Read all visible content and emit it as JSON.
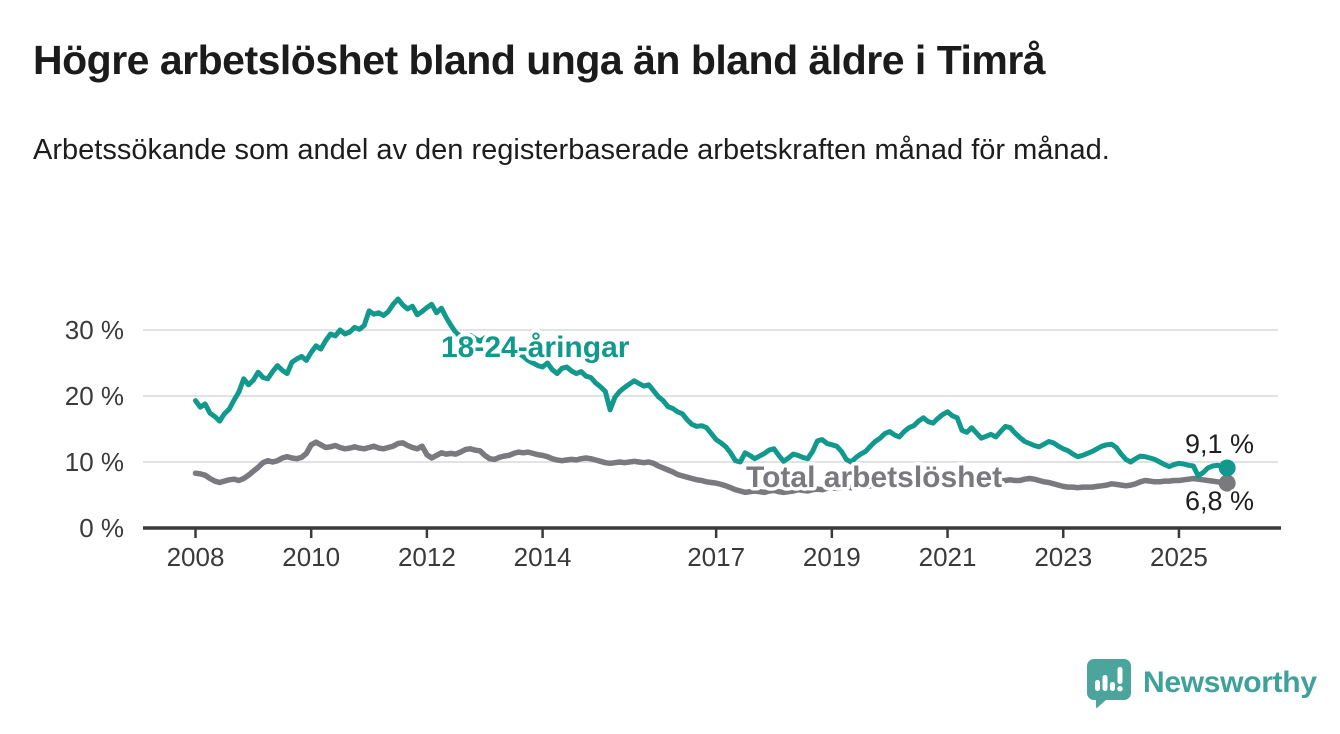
{
  "header": {
    "title": "Högre arbetslöshet bland unga än bland äldre i Timrå",
    "subtitle": "Arbetssökande som andel av den registerbaserade arbetskraften månad för månad."
  },
  "chart_data": {
    "type": "line",
    "title": "Högre arbetslöshet bland unga än bland äldre i Timrå",
    "subtitle": "Arbetssökande som andel av den registerbaserade arbetskraften månad för månad.",
    "unit": "%",
    "grid": "horizontal-only",
    "legend_position": "inline-labels-on-lines",
    "x_tick_years": [
      2008,
      2010,
      2012,
      2014,
      2017,
      2019,
      2021,
      2023,
      2025
    ],
    "x_tick_labels": [
      "2008",
      "2010",
      "2012",
      "2014",
      "2017",
      "2019",
      "2021",
      "2023",
      "2025"
    ],
    "y_ticks": [
      0,
      10,
      20,
      30
    ],
    "y_tick_labels": [
      "0 %",
      "10 %",
      "20 %",
      "30 %"
    ],
    "xlim": [
      2007.1,
      2026.8
    ],
    "ylim": [
      0,
      36
    ],
    "series": [
      {
        "name": "18-24-åringar",
        "color": "#12998d",
        "start_year": 2008,
        "points_per_year": 12,
        "end_label": "9,1 %",
        "end_value": 9.1,
        "values": [
          19.3,
          18.3,
          18.8,
          17.4,
          16.9,
          16.2,
          17.3,
          18.0,
          19.4,
          20.6,
          22.6,
          21.7,
          22.4,
          23.6,
          22.8,
          22.6,
          23.7,
          24.6,
          23.9,
          23.4,
          25.1,
          25.6,
          26.0,
          25.4,
          26.6,
          27.6,
          27.1,
          28.4,
          29.4,
          29.1,
          30.0,
          29.4,
          29.7,
          30.4,
          30.1,
          30.7,
          32.9,
          32.4,
          32.6,
          32.2,
          32.8,
          33.9,
          34.7,
          33.8,
          33.2,
          33.6,
          32.3,
          32.8,
          33.4,
          33.9,
          32.6,
          33.3,
          31.9,
          30.7,
          29.6,
          29.0,
          28.5,
          29.2,
          28.7,
          28.3,
          28.8,
          28.2,
          27.6,
          28.0,
          27.2,
          26.8,
          27.3,
          26.5,
          26.0,
          25.4,
          25.0,
          24.6,
          24.4,
          25.0,
          24.0,
          23.4,
          24.2,
          24.4,
          23.8,
          23.4,
          23.7,
          23.0,
          22.8,
          22.0,
          21.4,
          20.7,
          17.9,
          19.8,
          20.7,
          21.3,
          21.8,
          22.3,
          21.9,
          21.5,
          21.7,
          20.8,
          19.9,
          19.3,
          18.4,
          18.1,
          17.6,
          17.3,
          16.4,
          15.7,
          15.4,
          15.5,
          15.2,
          14.3,
          13.4,
          12.9,
          12.3,
          11.4,
          10.2,
          10.0,
          11.4,
          11.0,
          10.5,
          10.9,
          11.3,
          11.8,
          12.0,
          11.0,
          10.1,
          10.6,
          11.2,
          11.0,
          10.7,
          10.5,
          11.6,
          13.2,
          13.4,
          12.8,
          12.6,
          12.4,
          11.6,
          10.4,
          10.0,
          10.7,
          11.2,
          11.6,
          12.4,
          13.1,
          13.6,
          14.3,
          14.6,
          14.1,
          13.8,
          14.6,
          15.2,
          15.5,
          16.2,
          16.7,
          16.1,
          15.9,
          16.6,
          17.2,
          17.6,
          17.0,
          16.7,
          14.8,
          14.5,
          15.2,
          14.4,
          13.6,
          13.9,
          14.2,
          13.8,
          14.6,
          15.4,
          15.2,
          14.4,
          13.7,
          13.1,
          12.8,
          12.5,
          12.3,
          12.7,
          13.1,
          12.9,
          12.4,
          12.0,
          11.7,
          11.2,
          10.8,
          11.0,
          11.3,
          11.6,
          12.0,
          12.4,
          12.6,
          12.7,
          12.2,
          11.2,
          10.4,
          10.0,
          10.5,
          10.9,
          10.8,
          10.6,
          10.4,
          10.0,
          9.6,
          9.3,
          9.6,
          9.8,
          9.7,
          9.5,
          9.4,
          7.9,
          8.4,
          9.1,
          9.4,
          9.5,
          9.3,
          9.1
        ]
      },
      {
        "name": "Total arbetslöshet",
        "color": "#7a797e",
        "start_year": 2008,
        "points_per_year": 12,
        "end_label": "6,8 %",
        "end_value": 6.8,
        "values": [
          8.3,
          8.2,
          8.0,
          7.5,
          7.1,
          6.9,
          7.1,
          7.3,
          7.4,
          7.2,
          7.5,
          8.0,
          8.6,
          9.2,
          9.9,
          10.2,
          10.0,
          10.2,
          10.6,
          10.8,
          10.6,
          10.5,
          10.7,
          11.3,
          12.6,
          13.0,
          12.6,
          12.2,
          12.3,
          12.5,
          12.2,
          12.0,
          12.1,
          12.3,
          12.1,
          12.0,
          12.2,
          12.4,
          12.1,
          12.0,
          12.2,
          12.4,
          12.8,
          12.9,
          12.5,
          12.2,
          12.0,
          12.4,
          11.1,
          10.6,
          11.0,
          11.4,
          11.2,
          11.3,
          11.2,
          11.5,
          11.9,
          12.0,
          11.8,
          11.7,
          11.0,
          10.5,
          10.4,
          10.7,
          10.9,
          11.0,
          11.3,
          11.5,
          11.4,
          11.5,
          11.3,
          11.1,
          11.0,
          10.8,
          10.5,
          10.3,
          10.2,
          10.3,
          10.4,
          10.3,
          10.5,
          10.6,
          10.5,
          10.3,
          10.1,
          9.9,
          9.8,
          9.9,
          10.0,
          9.9,
          10.0,
          10.1,
          10.0,
          9.9,
          10.0,
          9.8,
          9.4,
          9.1,
          8.8,
          8.5,
          8.1,
          7.9,
          7.7,
          7.5,
          7.3,
          7.2,
          7.0,
          6.9,
          6.8,
          6.6,
          6.4,
          6.1,
          5.8,
          5.6,
          5.4,
          5.5,
          5.6,
          5.5,
          5.4,
          5.6,
          5.7,
          5.5,
          5.4,
          5.5,
          5.6,
          5.8,
          5.7,
          5.6,
          5.8,
          5.9,
          5.8,
          6.0,
          6.1,
          6.0,
          6.1,
          6.2,
          6.1,
          6.3,
          6.4,
          6.3,
          6.4,
          6.5,
          6.4,
          6.6,
          6.8,
          7.0,
          7.4,
          7.8,
          8.1,
          8.3,
          8.2,
          8.3,
          8.1,
          8.0,
          7.9,
          7.8,
          7.7,
          7.6,
          7.4,
          7.3,
          7.2,
          7.3,
          7.2,
          7.1,
          7.2,
          7.3,
          7.2,
          7.1,
          7.2,
          7.3,
          7.2,
          7.2,
          7.4,
          7.5,
          7.4,
          7.2,
          7.0,
          6.9,
          6.7,
          6.5,
          6.3,
          6.2,
          6.2,
          6.1,
          6.2,
          6.2,
          6.2,
          6.3,
          6.4,
          6.5,
          6.7,
          6.6,
          6.5,
          6.4,
          6.5,
          6.7,
          7.0,
          7.2,
          7.1,
          7.0,
          7.0,
          7.1,
          7.1,
          7.2,
          7.2,
          7.3,
          7.4,
          7.5,
          7.4,
          7.3,
          7.2,
          7.1,
          7.0,
          6.9,
          6.8
        ]
      }
    ]
  },
  "footer": {
    "brand": "Newsworthy"
  }
}
